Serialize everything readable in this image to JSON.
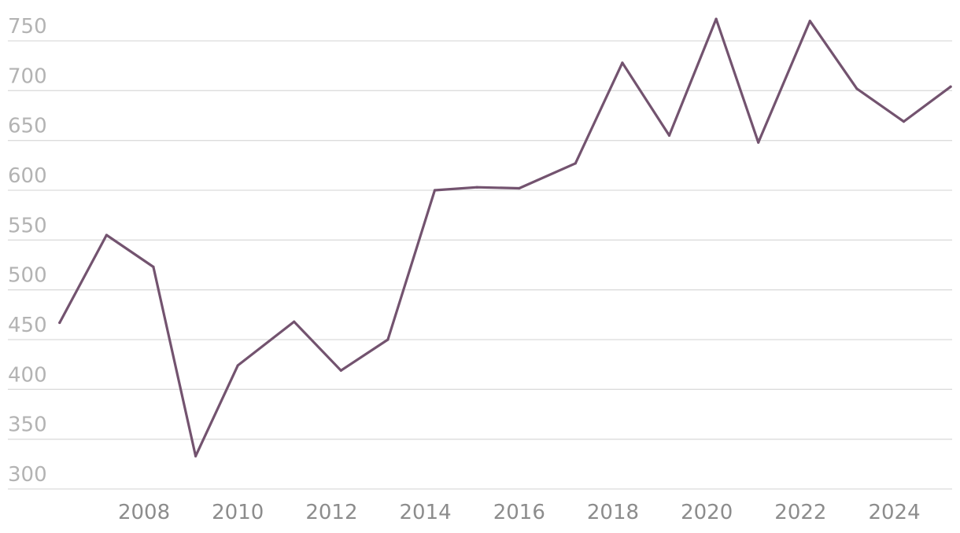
{
  "chart_data": {
    "type": "line",
    "title": "",
    "xlabel": "",
    "ylabel": "",
    "grid": true,
    "legend": "none",
    "line_color": "#73536f",
    "xlim": [
      2005.6,
      2025.4
    ],
    "ylim": [
      300,
      750
    ],
    "y_ticks": [
      300,
      350,
      400,
      450,
      500,
      550,
      600,
      650,
      700,
      750
    ],
    "x_ticks": [
      2008,
      2010,
      2012,
      2014,
      2016,
      2018,
      2020,
      2022,
      2024
    ],
    "series": [
      {
        "name": "",
        "x": [
          2006.2,
          2007.2,
          2008.2,
          2009.1,
          2010.0,
          2011.2,
          2012.2,
          2013.2,
          2014.2,
          2015.1,
          2016.0,
          2017.2,
          2018.2,
          2019.2,
          2020.2,
          2021.1,
          2022.2,
          2023.2,
          2024.2,
          2025.2
        ],
        "values": [
          467,
          555,
          523,
          333,
          424,
          468,
          419,
          450,
          600,
          603,
          602,
          627,
          728,
          655,
          772,
          648,
          770,
          702,
          669,
          704
        ]
      }
    ]
  }
}
